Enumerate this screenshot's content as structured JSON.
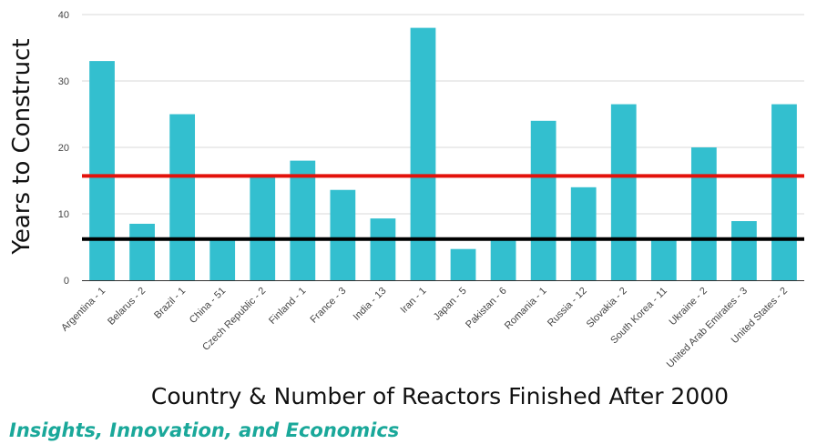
{
  "chart_data": {
    "type": "bar",
    "title": "",
    "xlabel": "Country & Number of Reactors Finished After 2000",
    "ylabel": "Years to Construct",
    "ylim": [
      0,
      40
    ],
    "yticks": [
      0,
      10,
      20,
      30,
      40
    ],
    "grid": true,
    "legend": "none",
    "categories": [
      "Argentina - 1",
      "Belarus - 2",
      "Brazil - 1",
      "China - 51",
      "Czech Republic - 2",
      "Finland - 1",
      "France - 3",
      "India - 13",
      "Iran - 1",
      "Japan - 5",
      "Pakistan - 6",
      "Romania - 1",
      "Russia - 12",
      "Slovakia - 2",
      "South Korea - 11",
      "Ukraine - 2",
      "United Arab Emirates - 3",
      "United States - 2"
    ],
    "values": [
      33,
      8.5,
      25,
      6.2,
      15.5,
      18,
      13.6,
      9.3,
      38,
      4.7,
      6.2,
      24,
      14,
      26.5,
      6.2,
      20,
      8.9,
      26.5
    ],
    "reference_lines": [
      {
        "value": 15.7,
        "color": "#e3120b"
      },
      {
        "value": 6.2,
        "color": "#000000"
      }
    ],
    "bar_color": "#33bfcf"
  },
  "footer": {
    "text": "Insights, Innovation, and Economics",
    "color": "#1aa89a"
  }
}
